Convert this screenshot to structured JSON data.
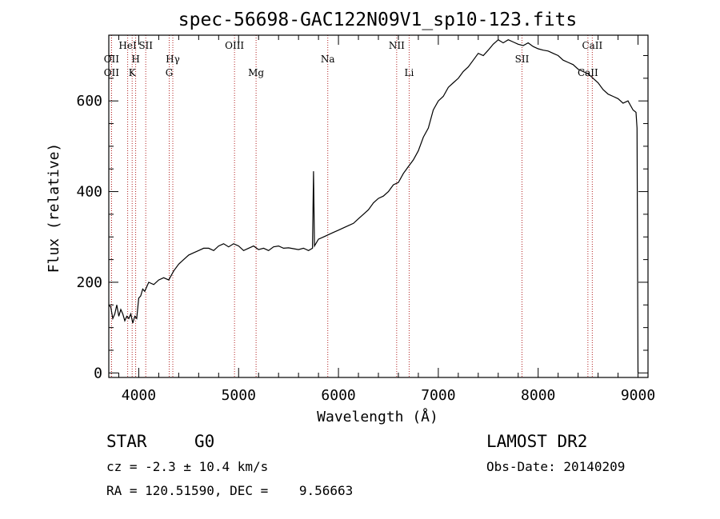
{
  "chart_data": {
    "type": "line",
    "title": "spec-56698-GAC122N09V1_sp10-123.fits",
    "xlabel": "Wavelength (Å)",
    "ylabel": "Flux (relative)",
    "xlim": [
      3700,
      9100
    ],
    "ylim": [
      -10,
      745
    ],
    "x_ticks": [
      4000,
      5000,
      6000,
      7000,
      8000,
      9000
    ],
    "x_tick_labels": [
      "4000",
      "5000",
      "6000",
      "7000",
      "8000",
      "9000"
    ],
    "y_ticks": [
      0,
      200,
      400,
      600
    ],
    "y_tick_labels": [
      "0",
      "200",
      "400",
      "600"
    ],
    "grid": false,
    "line_color": "#000000",
    "marker_color": "#b22222",
    "series": [
      {
        "x": [
          3700,
          3720,
          3740,
          3760,
          3780,
          3800,
          3820,
          3840,
          3860,
          3880,
          3900,
          3920,
          3940,
          3960,
          3980,
          4000,
          4020,
          4040,
          4060,
          4080,
          4100,
          4150,
          4200,
          4250,
          4300,
          4350,
          4400,
          4450,
          4500,
          4550,
          4600,
          4650,
          4700,
          4750,
          4800,
          4850,
          4900,
          4950,
          5000,
          5050,
          5100,
          5150,
          5200,
          5250,
          5300,
          5350,
          5400,
          5450,
          5500,
          5550,
          5600,
          5650,
          5700,
          5740,
          5750,
          5760,
          5800,
          5850,
          5900,
          5950,
          6000,
          6050,
          6100,
          6150,
          6200,
          6250,
          6300,
          6350,
          6400,
          6450,
          6500,
          6550,
          6600,
          6650,
          6700,
          6750,
          6800,
          6850,
          6900,
          6950,
          7000,
          7050,
          7100,
          7150,
          7200,
          7250,
          7300,
          7350,
          7400,
          7450,
          7500,
          7550,
          7600,
          7650,
          7700,
          7750,
          7800,
          7850,
          7900,
          7950,
          8000,
          8050,
          8100,
          8150,
          8200,
          8250,
          8300,
          8350,
          8400,
          8450,
          8500,
          8550,
          8600,
          8650,
          8700,
          8750,
          8800,
          8850,
          8900,
          8950,
          8980,
          8990,
          9000
        ],
        "y": [
          150,
          145,
          120,
          130,
          150,
          125,
          140,
          130,
          115,
          125,
          120,
          130,
          110,
          125,
          120,
          165,
          170,
          185,
          180,
          190,
          200,
          195,
          205,
          210,
          205,
          225,
          240,
          250,
          260,
          265,
          270,
          275,
          275,
          270,
          280,
          285,
          278,
          285,
          280,
          270,
          275,
          280,
          272,
          275,
          270,
          278,
          280,
          275,
          276,
          274,
          272,
          275,
          270,
          275,
          445,
          280,
          295,
          300,
          305,
          310,
          315,
          320,
          325,
          330,
          340,
          350,
          360,
          375,
          385,
          390,
          400,
          415,
          420,
          440,
          455,
          470,
          490,
          520,
          540,
          580,
          600,
          610,
          630,
          640,
          650,
          665,
          675,
          690,
          705,
          700,
          712,
          725,
          735,
          728,
          735,
          730,
          725,
          722,
          728,
          720,
          715,
          712,
          710,
          705,
          700,
          690,
          685,
          680,
          670,
          665,
          660,
          650,
          640,
          625,
          615,
          610,
          605,
          595,
          600,
          580,
          575,
          540,
          0
        ]
      }
    ],
    "spectral_lines": [
      {
        "label": "OII",
        "x": 3727,
        "row": 2
      },
      {
        "label": "OII",
        "x": 3727,
        "row": 3
      },
      {
        "label": "HeI",
        "x": 3889,
        "row": 1
      },
      {
        "label": "H",
        "x": 3969,
        "row": 2
      },
      {
        "label": "K",
        "x": 3934,
        "row": 3
      },
      {
        "label": "SII",
        "x": 4070,
        "row": 1
      },
      {
        "label": "Hγ",
        "x": 4341,
        "row": 2
      },
      {
        "label": "G",
        "x": 4305,
        "row": 3
      },
      {
        "label": "OIII",
        "x": 4959,
        "row": 1
      },
      {
        "label": "Mg",
        "x": 5175,
        "row": 3
      },
      {
        "label": "Na",
        "x": 5893,
        "row": 2
      },
      {
        "label": "NII",
        "x": 6583,
        "row": 1
      },
      {
        "label": "Li",
        "x": 6708,
        "row": 3
      },
      {
        "label": "SII",
        "x": 7838,
        "row": 2
      },
      {
        "label": "CaII",
        "x": 8542,
        "row": 1
      },
      {
        "label": "CaII",
        "x": 8498,
        "row": 3
      }
    ]
  },
  "info": {
    "object_class": "STAR",
    "subclass": "G0",
    "survey": "LAMOST DR2",
    "redshift": "cz = -2.3 ± 10.4 km/s",
    "obs_date": "Obs-Date: 20140209",
    "coordinates": "RA = 120.51590, DEC =    9.56663"
  }
}
